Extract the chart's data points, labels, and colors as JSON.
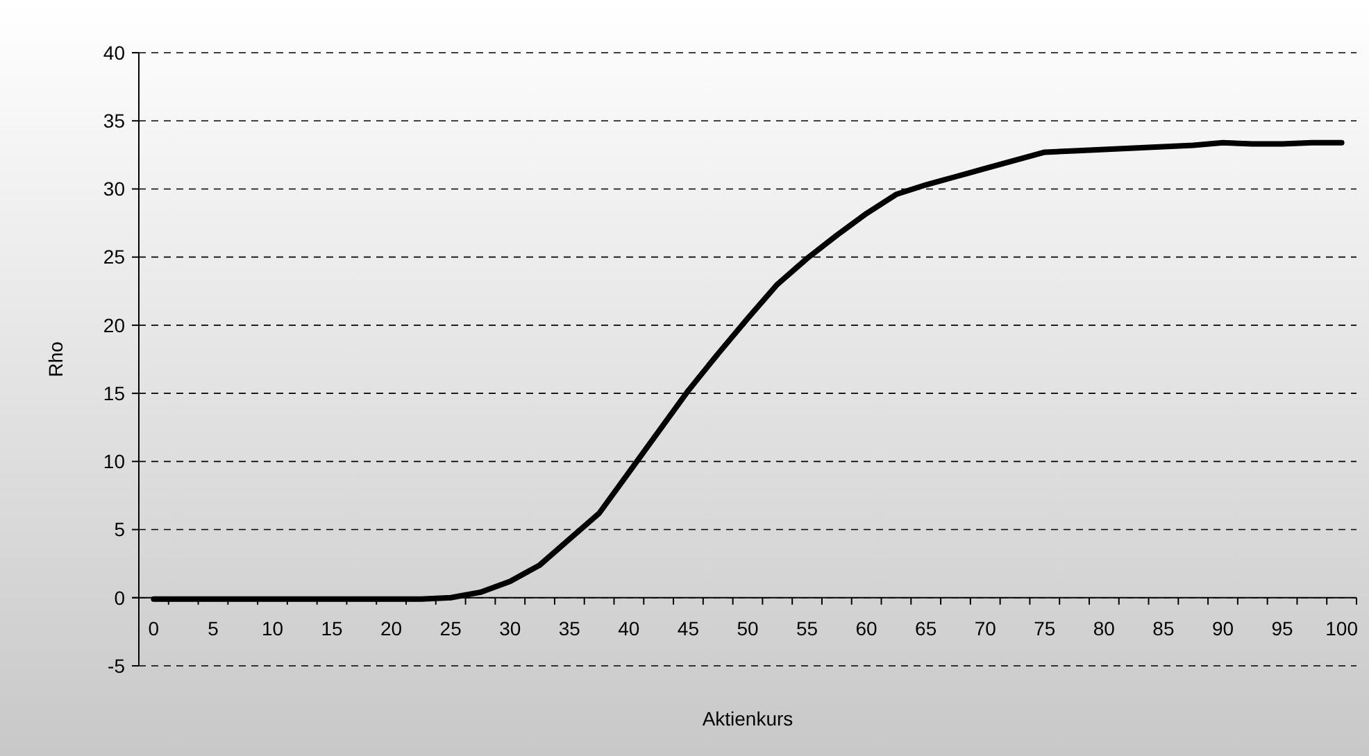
{
  "chart_data": {
    "type": "line",
    "xlabel": "Aktienkurs",
    "ylabel": "Rho",
    "categories": [
      "0",
      null,
      "5",
      null,
      "10",
      null,
      "15",
      null,
      "20",
      null,
      "25",
      null,
      "30",
      null,
      "35",
      null,
      "40",
      null,
      "45",
      null,
      "50",
      null,
      "55",
      null,
      "60",
      null,
      "65",
      null,
      "70",
      null,
      "75",
      null,
      "80",
      null,
      "85",
      null,
      "90",
      null,
      "95",
      null,
      "100"
    ],
    "series": [
      {
        "color": "#000000",
        "values": [
          -0.1,
          -0.1,
          -0.1,
          -0.1,
          -0.1,
          -0.1,
          -0.1,
          -0.1,
          -0.1,
          -0.1,
          0,
          0.4,
          1.2,
          2.4,
          4.3,
          6.2,
          9.2,
          12.2,
          15.2,
          17.9,
          20.5,
          23,
          24.9,
          26.6,
          28.2,
          29.6,
          30.3,
          30.9,
          31.5,
          32.1,
          32.7,
          32.8,
          32.9,
          33,
          33.1,
          33.2,
          33.4,
          33.3,
          33.3,
          33.4,
          33.4
        ]
      }
    ],
    "ylim": [
      -5,
      40
    ],
    "yticks": [
      -5,
      0,
      5,
      10,
      15,
      20,
      25,
      30,
      35,
      40
    ],
    "grid": "y",
    "marker": "none",
    "line_style": "solid"
  }
}
